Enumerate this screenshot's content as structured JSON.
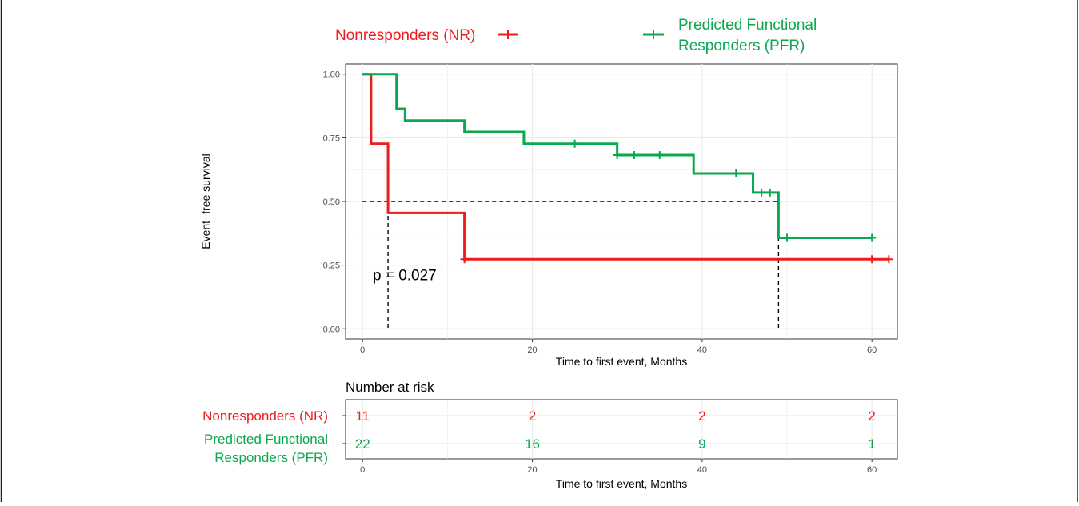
{
  "colors": {
    "nr": "#ee1c1c",
    "pfr": "#0aa84f",
    "grid": "#ebebeb",
    "axis": "#333333",
    "text": "#000000"
  },
  "legend": {
    "nr_label": "Nonresponders (NR)",
    "pfr_label_line1": "Predicted Functional",
    "pfr_label_line2": "Responders (PFR)"
  },
  "chart_data": {
    "type": "line",
    "subtype": "kaplan-meier",
    "title": "",
    "xlabel": "Time to first event, Months",
    "ylabel": "Event−free survival",
    "xlim": [
      -2,
      63
    ],
    "ylim": [
      -0.04,
      1.04
    ],
    "x_ticks": [
      0,
      20,
      40,
      60
    ],
    "x_tick_labels": [
      "0",
      "20",
      "40",
      "60"
    ],
    "y_ticks": [
      0,
      0.25,
      0.5,
      0.75,
      1
    ],
    "y_tick_labels": [
      "0.00",
      "0.25",
      "0.50",
      "0.75",
      "1.00"
    ],
    "grid": true,
    "legend_position": "top",
    "annotation": "p = 0.027",
    "annotation_pos": [
      1.2,
      0.19
    ],
    "median_reference": {
      "y": 0.5,
      "x_nr": 3,
      "x_pfr": 49
    },
    "series": [
      {
        "name": "Nonresponders (NR)",
        "color": "nr",
        "steps": [
          [
            0,
            1.0
          ],
          [
            1,
            0.727
          ],
          [
            3,
            0.455
          ],
          [
            12,
            0.273
          ],
          [
            62,
            0.273
          ]
        ],
        "censors": [
          [
            12,
            0.273
          ],
          [
            60,
            0.273
          ],
          [
            62,
            0.273
          ]
        ]
      },
      {
        "name": "Predicted Functional Responders (PFR)",
        "color": "pfr",
        "steps": [
          [
            0,
            1.0
          ],
          [
            4,
            0.864
          ],
          [
            5,
            0.818
          ],
          [
            12,
            0.773
          ],
          [
            19,
            0.727
          ],
          [
            30,
            0.682
          ],
          [
            39,
            0.61
          ],
          [
            46,
            0.535
          ],
          [
            49,
            0.357
          ],
          [
            60,
            0.357
          ]
        ],
        "censors": [
          [
            25,
            0.727
          ],
          [
            30,
            0.682
          ],
          [
            32,
            0.682
          ],
          [
            35,
            0.682
          ],
          [
            44,
            0.61
          ],
          [
            47,
            0.535
          ],
          [
            48,
            0.535
          ],
          [
            50,
            0.357
          ],
          [
            60,
            0.357
          ]
        ]
      }
    ]
  },
  "risk_table": {
    "title": "Number at risk",
    "xlabel": "Time to first event, Months",
    "times": [
      0,
      20,
      40,
      60
    ],
    "time_labels": [
      "0",
      "20",
      "40",
      "60"
    ],
    "rows": [
      {
        "label": "Nonresponders (NR)",
        "color": "nr",
        "values": [
          "11",
          "2",
          "2",
          "2"
        ]
      },
      {
        "label_line1": "Predicted Functional",
        "label_line2": "Responders (PFR)",
        "color": "pfr",
        "values": [
          "22",
          "16",
          "9",
          "1"
        ]
      }
    ]
  }
}
